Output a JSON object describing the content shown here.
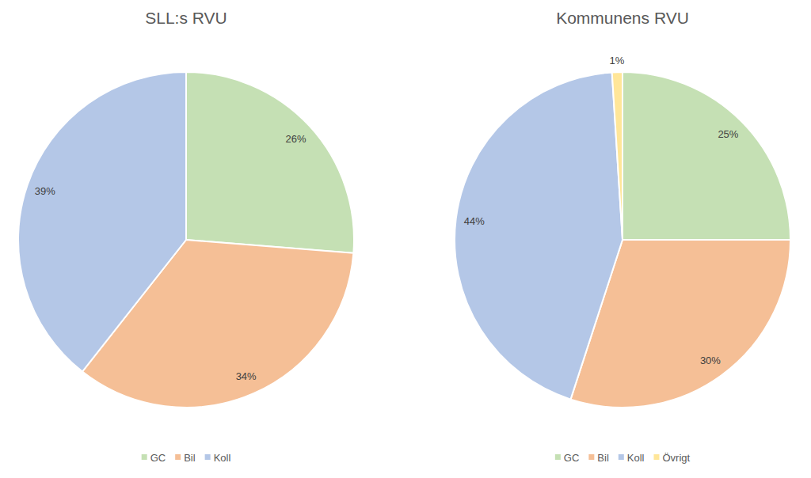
{
  "chart_data": [
    {
      "type": "pie",
      "title": "SLL:s RVU",
      "categories": [
        "GC",
        "Bil",
        "Koll"
      ],
      "values": [
        26,
        34,
        39
      ],
      "value_labels": [
        "26%",
        "34%",
        "39%"
      ],
      "colors": [
        "#c5e0b4",
        "#f5bf96",
        "#b4c7e7"
      ],
      "data_labels": true,
      "legend": "bottom"
    },
    {
      "type": "pie",
      "title": "Kommunens RVU",
      "categories": [
        "GC",
        "Bil",
        "Koll",
        "Övrigt"
      ],
      "values": [
        25,
        30,
        44,
        1
      ],
      "value_labels": [
        "25%",
        "30%",
        "44%",
        "1%"
      ],
      "colors": [
        "#c5e0b4",
        "#f5bf96",
        "#b4c7e7",
        "#ffe699"
      ],
      "data_labels": true,
      "legend": "bottom"
    }
  ]
}
